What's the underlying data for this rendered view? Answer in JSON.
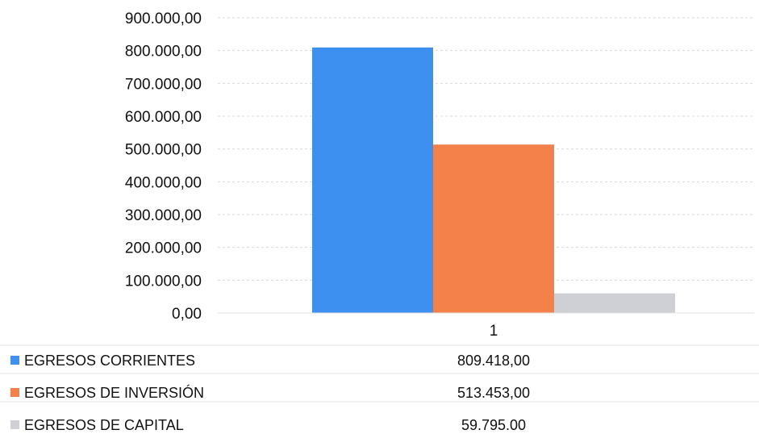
{
  "chart_data": {
    "type": "bar",
    "categories": [
      "1"
    ],
    "series": [
      {
        "name": "EGRESOS CORRIENTES",
        "values": [
          809418.0
        ],
        "value_label": "809.418,00",
        "color": "#3d8ff0"
      },
      {
        "name": "EGRESOS DE INVERSIÓN",
        "values": [
          513453.0
        ],
        "value_label": "513.453,00",
        "color": "#f4804a"
      },
      {
        "name": "EGRESOS DE CAPITAL",
        "values": [
          59795.0
        ],
        "value_label": "59.795,00",
        "color": "#cfd0d6"
      }
    ],
    "ylim": [
      0,
      900000
    ],
    "yticks": [
      0,
      100000,
      200000,
      300000,
      400000,
      500000,
      600000,
      700000,
      800000,
      900000
    ],
    "ytick_labels": [
      "0,00",
      "100.000,00",
      "200.000,00",
      "300.000,00",
      "400.000,00",
      "500.000,00",
      "600.000,00",
      "700.000,00",
      "800.000,00",
      "900.000,00"
    ],
    "grid": true,
    "legend": "data-table-below"
  }
}
